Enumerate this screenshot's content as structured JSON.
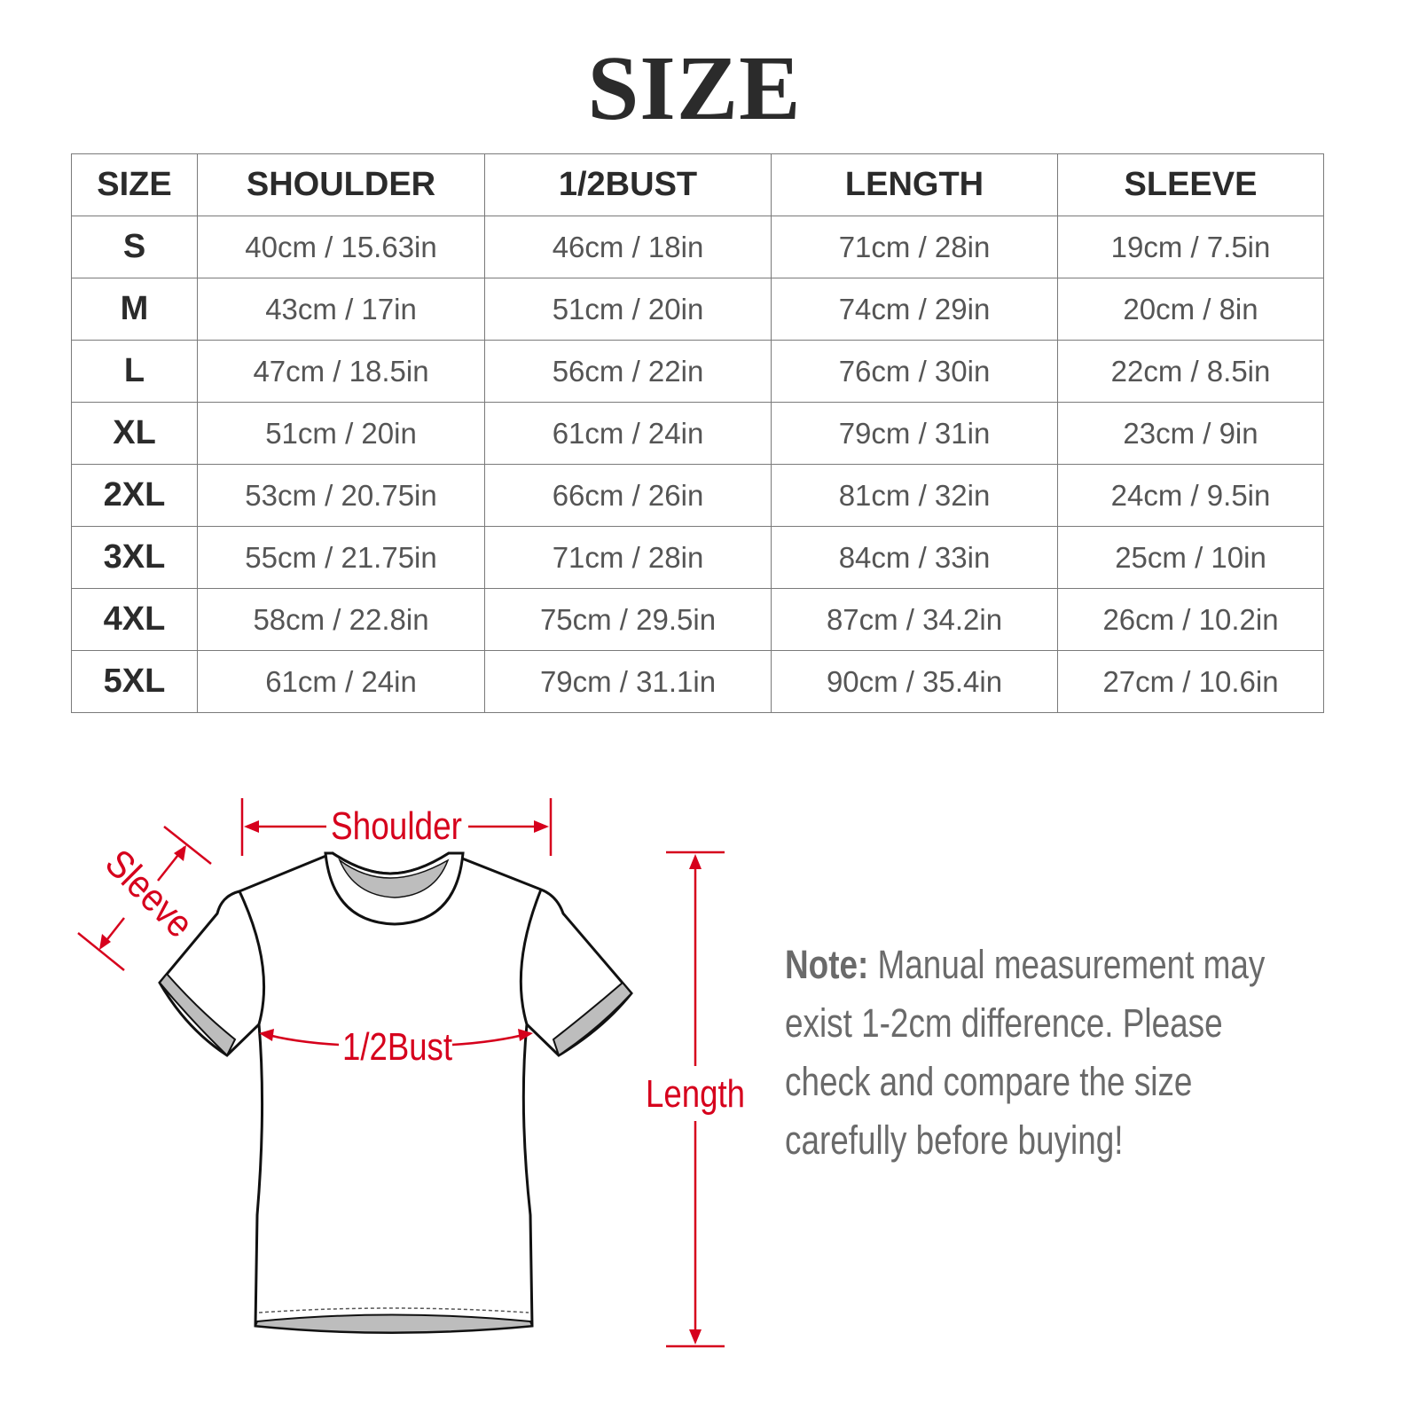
{
  "title": "SIZE",
  "table": {
    "headers": [
      "SIZE",
      "SHOULDER",
      "1/2BUST",
      "LENGTH",
      "SLEEVE"
    ],
    "rows": [
      [
        "S",
        "40cm / 15.63in",
        "46cm / 18in",
        "71cm / 28in",
        "19cm / 7.5in"
      ],
      [
        "M",
        "43cm / 17in",
        "51cm / 20in",
        "74cm / 29in",
        "20cm / 8in"
      ],
      [
        "L",
        "47cm / 18.5in",
        "56cm / 22in",
        "76cm / 30in",
        "22cm / 8.5in"
      ],
      [
        "XL",
        "51cm / 20in",
        "61cm / 24in",
        "79cm / 31in",
        "23cm / 9in"
      ],
      [
        "2XL",
        "53cm / 20.75in",
        "66cm / 26in",
        "81cm / 32in",
        "24cm / 9.5in"
      ],
      [
        "3XL",
        "55cm / 21.75in",
        "71cm / 28in",
        "84cm / 33in",
        "25cm / 10in"
      ],
      [
        "4XL",
        "58cm / 22.8in",
        "75cm / 29.5in",
        "87cm / 34.2in",
        "26cm / 10.2in"
      ],
      [
        "5XL",
        "61cm / 24in",
        "79cm / 31.1in",
        "90cm / 35.4in",
        "27cm / 10.6in"
      ]
    ]
  },
  "diagram": {
    "labels": {
      "shoulder": "Shoulder",
      "sleeve": "Sleeve",
      "bust": "1/2Bust",
      "length": "Length"
    },
    "annotation_color": "#d6001c"
  },
  "note": {
    "label": "Note:",
    "lines": [
      " Manual measurement may",
      "exist 1-2cm difference. Please",
      "check and compare the size",
      "carefully before buying!"
    ]
  }
}
